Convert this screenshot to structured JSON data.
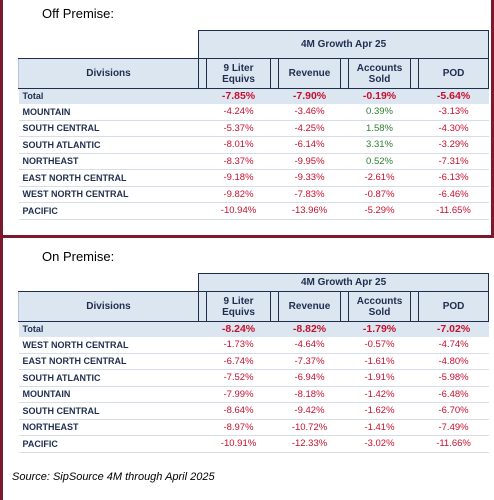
{
  "off_premise": {
    "title": "Off Premise:",
    "growth_header": "4M Growth Apr 25",
    "columns": {
      "divisions": "Divisions",
      "liter": "9 Liter Equivs",
      "revenue": "Revenue",
      "accounts": "Accounts Sold",
      "pod": "POD"
    },
    "total": {
      "label": "Total",
      "liter": "-7.85%",
      "revenue": "-7.90%",
      "accounts": "-0.19%",
      "pod": "-5.64%"
    },
    "rows": [
      {
        "label": "MOUNTAIN",
        "liter": "-4.24%",
        "revenue": "-3.46%",
        "accounts": "0.39%",
        "pod": "-3.13%"
      },
      {
        "label": "SOUTH CENTRAL",
        "liter": "-5.37%",
        "revenue": "-4.25%",
        "accounts": "1.58%",
        "pod": "-4.30%"
      },
      {
        "label": "SOUTH ATLANTIC",
        "liter": "-8.01%",
        "revenue": "-6.14%",
        "accounts": "3.31%",
        "pod": "-3.29%"
      },
      {
        "label": "NORTHEAST",
        "liter": "-8.37%",
        "revenue": "-9.95%",
        "accounts": "0.52%",
        "pod": "-7.31%"
      },
      {
        "label": "EAST NORTH CENTRAL",
        "liter": "-9.18%",
        "revenue": "-9.33%",
        "accounts": "-2.61%",
        "pod": "-6.13%"
      },
      {
        "label": "WEST NORTH CENTRAL",
        "liter": "-9.82%",
        "revenue": "-7.83%",
        "accounts": "-0.87%",
        "pod": "-6.46%"
      },
      {
        "label": "PACIFIC",
        "liter": "-10.94%",
        "revenue": "-13.96%",
        "accounts": "-5.29%",
        "pod": "-11.65%"
      }
    ]
  },
  "on_premise": {
    "title": "On Premise:",
    "growth_header": "4M Growth Apr 25",
    "columns": {
      "divisions": "Divisions",
      "liter": "9 Liter Equivs",
      "revenue": "Revenue",
      "accounts": "Accounts Sold",
      "pod": "POD"
    },
    "total": {
      "label": "Total",
      "liter": "-8.24%",
      "revenue": "-8.82%",
      "accounts": "-1.79%",
      "pod": "-7.02%"
    },
    "rows": [
      {
        "label": "WEST NORTH CENTRAL",
        "liter": "-1.73%",
        "revenue": "-4.64%",
        "accounts": "-0.57%",
        "pod": "-4.74%"
      },
      {
        "label": "EAST NORTH CENTRAL",
        "liter": "-6.74%",
        "revenue": "-7.37%",
        "accounts": "-1.61%",
        "pod": "-4.80%"
      },
      {
        "label": "SOUTH ATLANTIC",
        "liter": "-7.52%",
        "revenue": "-6.94%",
        "accounts": "-1.91%",
        "pod": "-5.98%"
      },
      {
        "label": "MOUNTAIN",
        "liter": "-7.99%",
        "revenue": "-8.18%",
        "accounts": "-1.42%",
        "pod": "-6.48%"
      },
      {
        "label": "SOUTH CENTRAL",
        "liter": "-8.64%",
        "revenue": "-9.42%",
        "accounts": "-1.62%",
        "pod": "-6.70%"
      },
      {
        "label": "NORTHEAST",
        "liter": "-8.97%",
        "revenue": "-10.72%",
        "accounts": "-1.41%",
        "pod": "-7.49%"
      },
      {
        "label": "PACIFIC",
        "liter": "-10.91%",
        "revenue": "-12.33%",
        "accounts": "-3.02%",
        "pod": "-11.66%"
      }
    ]
  },
  "source": "Source: SipSource 4M through April 2025",
  "colors": {
    "negative": "#c8102e",
    "positive": "#2e7d32",
    "header_bg": "#dce6f1",
    "frame": "#7a1a2a"
  }
}
